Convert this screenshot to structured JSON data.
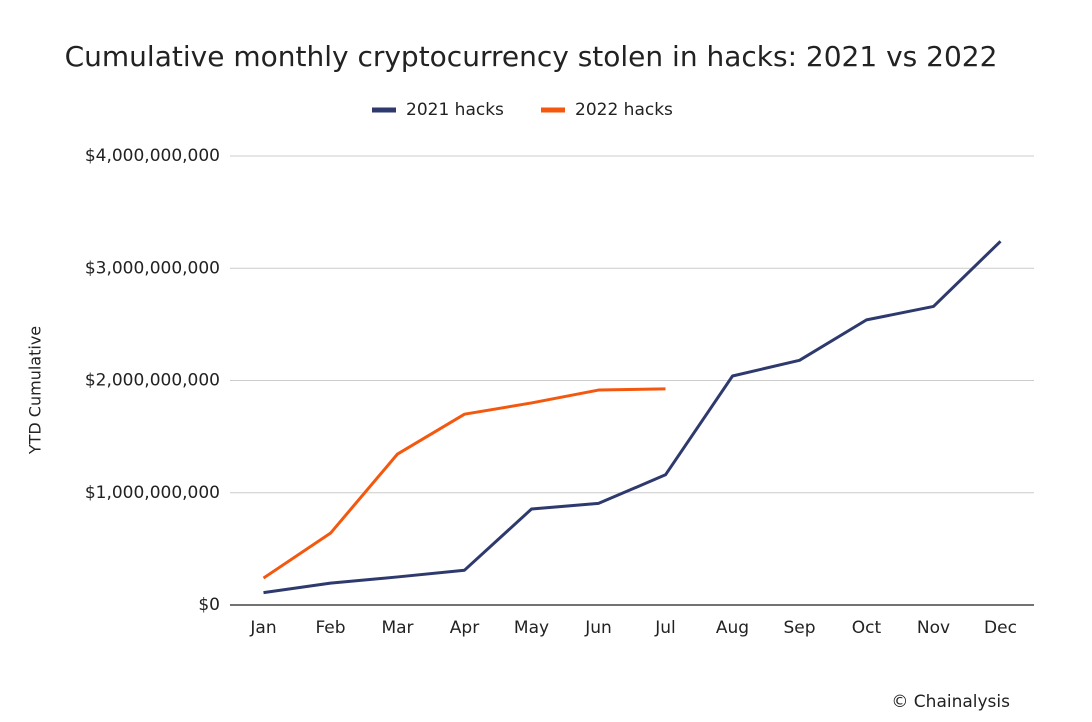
{
  "chart_data": {
    "type": "line",
    "title": "Cumulative monthly cryptocurrency stolen in hacks: 2021 vs 2022",
    "y_label": "YTD Cumulative",
    "source": "© Chainalysis",
    "categories": [
      "Jan",
      "Feb",
      "Mar",
      "Apr",
      "May",
      "Jun",
      "Jul",
      "Aug",
      "Sep",
      "Oct",
      "Nov",
      "Dec"
    ],
    "series": [
      {
        "name": "2021 hacks",
        "color": "#2e3a6e",
        "values": [
          110000000,
          195000000,
          250000000,
          310000000,
          855000000,
          905000000,
          1160000000,
          2040000000,
          2180000000,
          2540000000,
          2660000000,
          3240000000
        ]
      },
      {
        "name": "2022 hacks",
        "color": "#f4580f",
        "values": [
          240000000,
          640000000,
          1345000000,
          1700000000,
          1800000000,
          1915000000,
          1925000000,
          null,
          null,
          null,
          null,
          null
        ]
      }
    ],
    "ylim": [
      0,
      4000000000
    ],
    "yticks": [
      {
        "value": 0,
        "label": "$0"
      },
      {
        "value": 1000000000,
        "label": "$1,000,000,000"
      },
      {
        "value": 2000000000,
        "label": "$2,000,000,000"
      },
      {
        "value": 3000000000,
        "label": "$3,000,000,000"
      },
      {
        "value": 4000000000,
        "label": "$4,000,000,000"
      }
    ],
    "grid": true,
    "legend": "top"
  }
}
